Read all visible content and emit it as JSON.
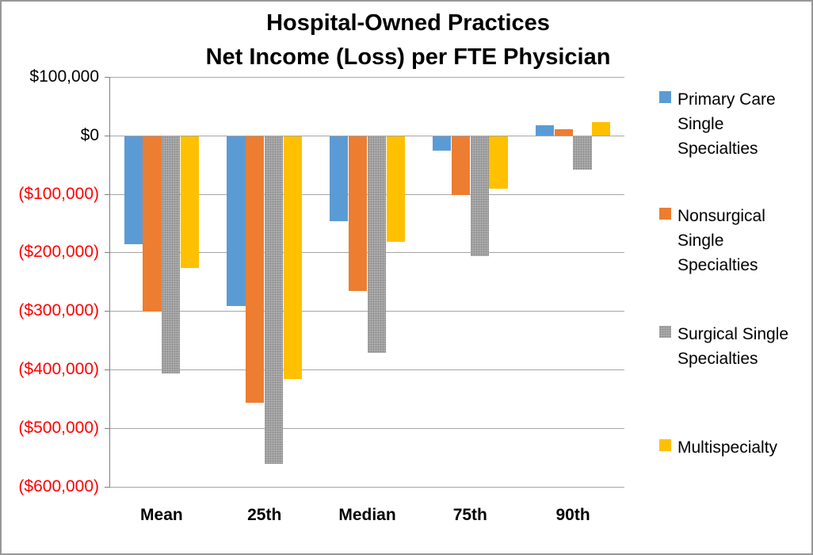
{
  "title": {
    "line1": "Hospital-Owned Practices",
    "line2": "Net Income (Loss) per FTE Physician"
  },
  "chart_data": {
    "type": "bar",
    "title": "Hospital-Owned Practices Net Income (Loss) per FTE Physician",
    "categories": [
      "Mean",
      "25th",
      "Median",
      "75th",
      "90th"
    ],
    "series": [
      {
        "name": "Primary Care Single Specialties",
        "legend_lines": [
          "Primary Care",
          "Single",
          "Specialties"
        ],
        "color": "#5B9BD5",
        "values": [
          -185000,
          -290000,
          -145000,
          -25000,
          18000
        ]
      },
      {
        "name": "Nonsurgical Single Specialties",
        "legend_lines": [
          "Nonsurgical",
          "Single",
          "Specialties"
        ],
        "color": "#ED7D31",
        "values": [
          -300000,
          -455000,
          -265000,
          -100000,
          10000
        ]
      },
      {
        "name": "Surgical Single Specialties",
        "legend_lines": [
          "Surgical Single",
          "Specialties"
        ],
        "color": "#A5A5A5",
        "patterned": true,
        "values": [
          -405000,
          -560000,
          -370000,
          -205000,
          -57000
        ]
      },
      {
        "name": "Multispecialty",
        "legend_lines": [
          "Multispecialty"
        ],
        "color": "#FFC000",
        "values": [
          -225000,
          -415000,
          -180000,
          -90000,
          23000
        ]
      }
    ],
    "y_axis": {
      "ticks": [
        {
          "label": "$100,000",
          "value": 100000
        },
        {
          "label": "$0",
          "value": 0
        },
        {
          "label": "($100,000)",
          "value": -100000
        },
        {
          "label": "($200,000)",
          "value": -200000
        },
        {
          "label": "($300,000)",
          "value": -300000
        },
        {
          "label": "($400,000)",
          "value": -400000
        },
        {
          "label": "($500,000)",
          "value": -500000
        },
        {
          "label": "($600,000)",
          "value": -600000
        }
      ],
      "ylim": [
        -600000,
        100000
      ]
    },
    "xlabel": "",
    "ylabel": "",
    "grid": true,
    "legend_position": "right"
  },
  "colors": {
    "positive_label": "#000000",
    "negative_label": "#FF0000",
    "gridline": "#a6a6a6",
    "axis": "#7f7f7f",
    "series": [
      "#5B9BD5",
      "#ED7D31",
      "#A5A5A5",
      "#FFC000"
    ]
  }
}
